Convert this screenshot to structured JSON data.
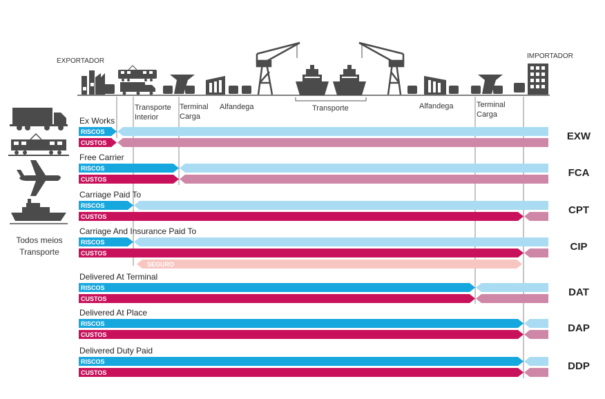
{
  "header": {
    "exporter": "EXPORTADOR",
    "importer": "IMPORTADOR",
    "stages": {
      "inland_transport": [
        "Transporte",
        "Interior"
      ],
      "terminal_origin": [
        "Terminal",
        "Carga"
      ],
      "customs_origin": "Alfandega",
      "main_transport": "Transporte",
      "customs_destination": "Alfandega",
      "terminal_destination": [
        "Terminal",
        "Carga"
      ]
    }
  },
  "sidebar": {
    "transport_modes": [
      "truck-icon",
      "train-icon",
      "airplane-icon",
      "ship-icon"
    ],
    "caption": [
      "Todos meios",
      "Transporte"
    ]
  },
  "labels": {
    "risk": "RISCOS",
    "cost": "CUSTOS",
    "insurance": "SEGURO"
  },
  "colors": {
    "seller_risk": "#16a7df",
    "buyer_risk": "#a9dcf3",
    "seller_cost": "#c9115b",
    "buyer_cost": "#cf87a7",
    "insurance": "#f7c6c1",
    "icon_dark": "#4b4b4b"
  },
  "terms": [
    {
      "code": "EXW",
      "name": "Ex Works",
      "risk_transfer": "exporter",
      "cost_transfer": "exporter",
      "insurance": false
    },
    {
      "code": "FCA",
      "name": "Free Carrier",
      "risk_transfer": "terminal-origin",
      "cost_transfer": "terminal-origin",
      "insurance": false
    },
    {
      "code": "CPT",
      "name": "Carriage Paid To",
      "risk_transfer": "inland-transport",
      "cost_transfer": "importer",
      "insurance": false
    },
    {
      "code": "CIP",
      "name": "Carriage And Insurance Paid To",
      "risk_transfer": "inland-transport",
      "cost_transfer": "importer",
      "insurance": true
    },
    {
      "code": "DAT",
      "name": "Delivered At Terminal",
      "risk_transfer": "terminal-destination",
      "cost_transfer": "terminal-destination",
      "insurance": false
    },
    {
      "code": "DAP",
      "name": "Delivered At Place",
      "risk_transfer": "importer",
      "cost_transfer": "importer",
      "insurance": false
    },
    {
      "code": "DDP",
      "name": "Delivered Duty Paid",
      "risk_transfer": "importer",
      "cost_transfer": "importer",
      "insurance": false
    }
  ]
}
